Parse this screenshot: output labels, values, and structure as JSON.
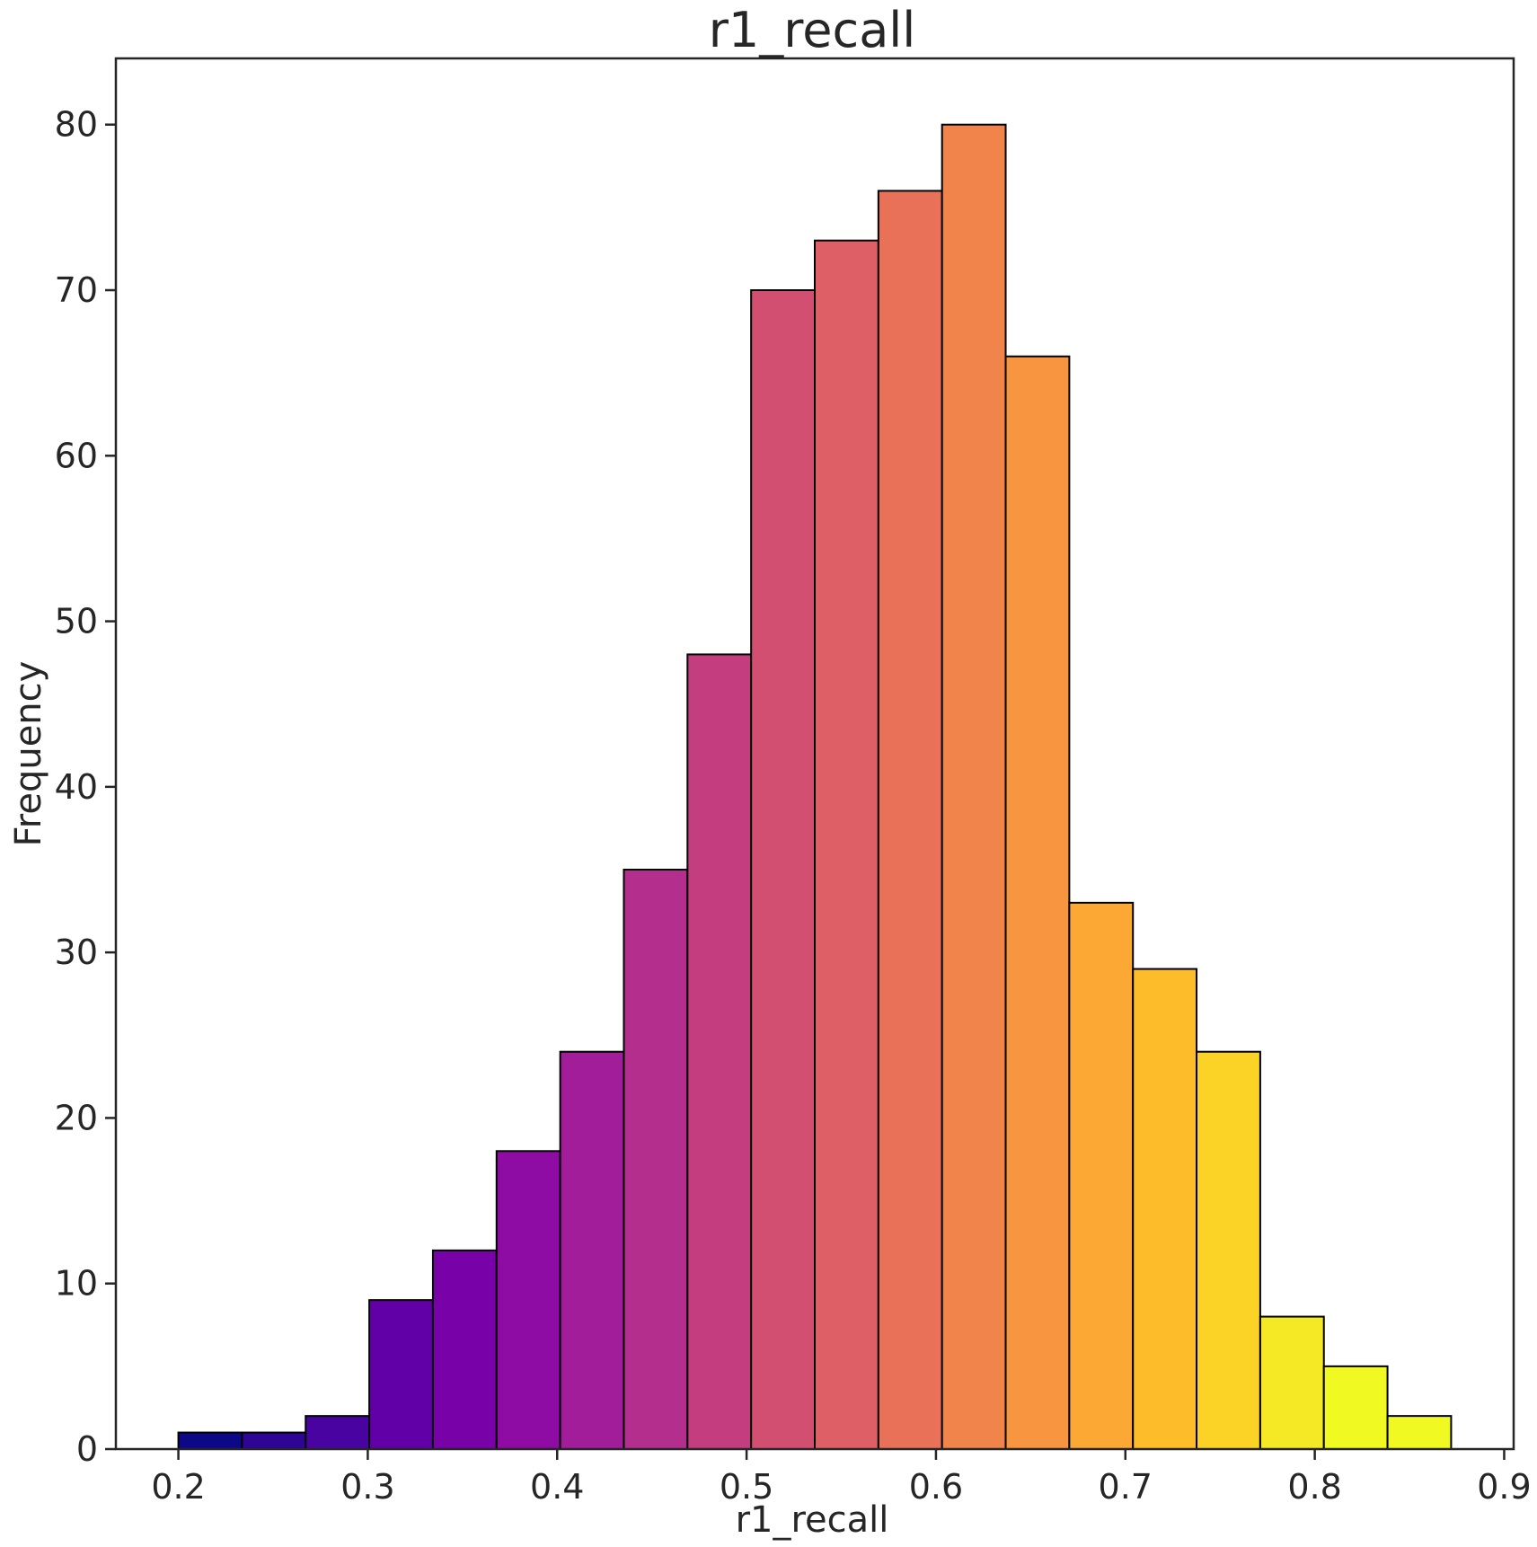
{
  "chart_data": {
    "type": "bar",
    "subtype": "histogram",
    "title": "r1_recall",
    "xlabel": "r1_recall",
    "ylabel": "Frequency",
    "xlim": [
      0.167,
      0.905
    ],
    "ylim": [
      0,
      84
    ],
    "x_ticks": [
      "0.2",
      "0.3",
      "0.4",
      "0.5",
      "0.6",
      "0.7",
      "0.8",
      "0.9"
    ],
    "y_ticks": [
      "0",
      "10",
      "20",
      "30",
      "40",
      "50",
      "60",
      "70",
      "80"
    ],
    "bin_start": 0.2,
    "bin_width": 0.0336,
    "bin_count": 20,
    "values": [
      1,
      1,
      2,
      9,
      12,
      18,
      24,
      35,
      48,
      70,
      73,
      76,
      80,
      66,
      33,
      29,
      24,
      8,
      5,
      2
    ],
    "colormap": "plasma",
    "colors": [
      "#0d0887",
      "#2f0596",
      "#4903a0",
      "#6100a7",
      "#7801a8",
      "#8e0ca4",
      "#a21d9a",
      "#b42e8d",
      "#c43e7f",
      "#d24f71",
      "#de5f65",
      "#e97158",
      "#f1844b",
      "#f89540",
      "#fca835",
      "#fdbd2b",
      "#fbd327",
      "#f5e926",
      "#f0f921",
      "#f0f921"
    ],
    "grid": false
  }
}
